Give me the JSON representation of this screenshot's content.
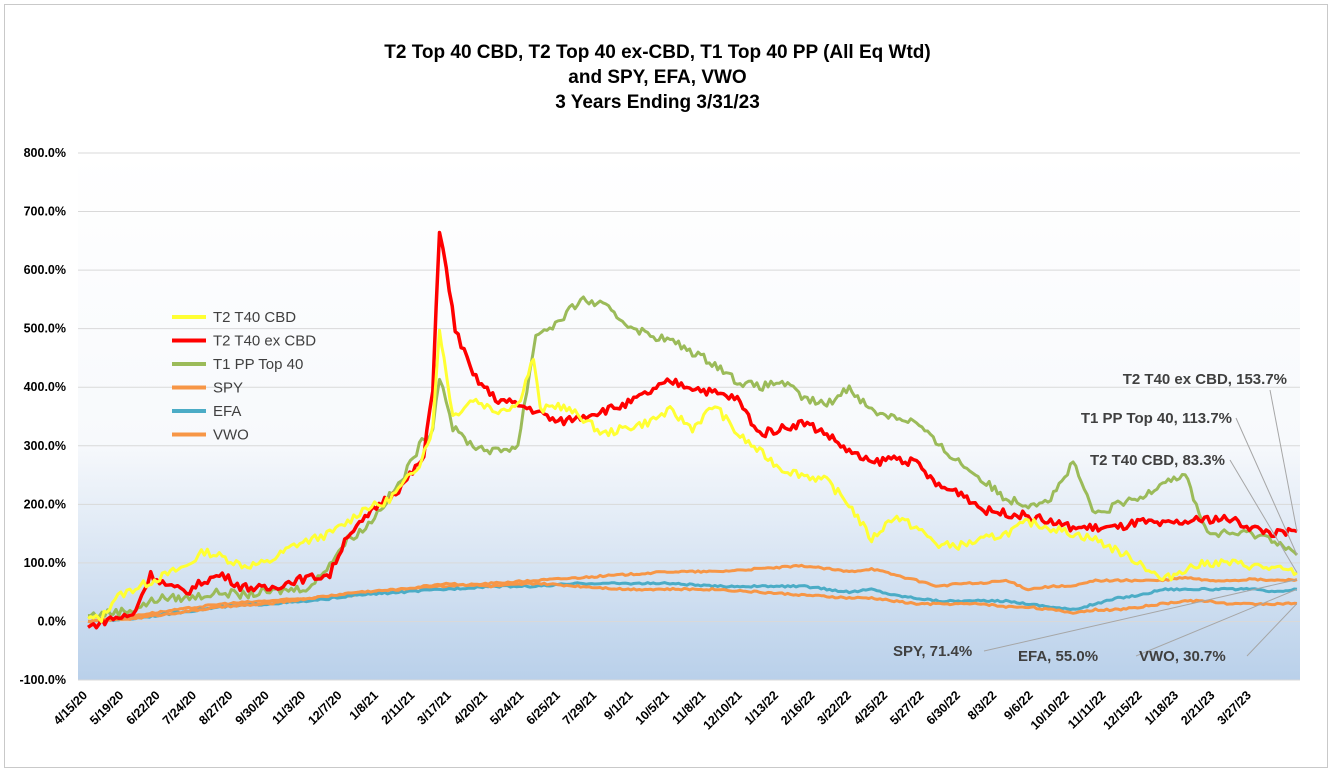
{
  "chart_data": {
    "type": "line",
    "title_lines": [
      "T2 Top 40 CBD, T2 Top 40 ex-CBD, T1 Top 40 PP (All Eq Wtd)",
      "and SPY, EFA, VWO",
      "3 Years Ending 3/31/23"
    ],
    "xlabel": "",
    "ylabel": "",
    "ylim": [
      -100,
      800
    ],
    "y_tick_labels": [
      "-100.0%",
      "0.0%",
      "100.0%",
      "200.0%",
      "300.0%",
      "400.0%",
      "500.0%",
      "600.0%",
      "700.0%",
      "800.0%"
    ],
    "y_tick_values": [
      -100,
      0,
      100,
      200,
      300,
      400,
      500,
      600,
      700,
      800
    ],
    "x_tick_labels": [
      "4/15/20",
      "5/19/20",
      "6/22/20",
      "7/24/20",
      "8/27/20",
      "9/30/20",
      "11/3/20",
      "12/7/20",
      "1/8/21",
      "2/11/21",
      "3/17/21",
      "4/20/21",
      "5/24/21",
      "6/25/21",
      "7/29/21",
      "9/1/21",
      "10/5/21",
      "11/8/21",
      "12/10/21",
      "1/13/22",
      "2/16/22",
      "3/22/22",
      "4/25/22",
      "5/27/22",
      "6/30/22",
      "8/3/22",
      "9/6/22",
      "10/10/22",
      "11/11/22",
      "12/15/22",
      "1/18/23",
      "2/21/23",
      "3/27/23"
    ],
    "x_range": [
      "3/31/20",
      "3/31/23"
    ],
    "grid": true,
    "legend_position": "left-middle",
    "series": [
      {
        "name": "T2 T40 CBD",
        "color": "#ffff33",
        "end_label": "T2 T40 CBD, 83.3%",
        "values": [
          [
            0,
            5
          ],
          [
            0.3,
            5
          ],
          [
            0.6,
            40
          ],
          [
            1,
            55
          ],
          [
            1.6,
            75
          ],
          [
            2.2,
            95
          ],
          [
            2.6,
            120
          ],
          [
            3,
            110
          ],
          [
            3.5,
            95
          ],
          [
            4,
            100
          ],
          [
            4.6,
            130
          ],
          [
            5,
            140
          ],
          [
            5.4,
            150
          ],
          [
            5.8,
            170
          ],
          [
            6.2,
            195
          ],
          [
            6.6,
            200
          ],
          [
            7,
            230
          ],
          [
            7.4,
            270
          ],
          [
            7.7,
            330
          ],
          [
            7.85,
            500
          ],
          [
            7.95,
            450
          ],
          [
            8.15,
            350
          ],
          [
            8.6,
            380
          ],
          [
            9.1,
            360
          ],
          [
            9.6,
            370
          ],
          [
            9.95,
            450
          ],
          [
            10.1,
            360
          ],
          [
            10.5,
            370
          ],
          [
            11,
            350
          ],
          [
            11.5,
            320
          ],
          [
            12,
            330
          ],
          [
            12.5,
            340
          ],
          [
            13,
            360
          ],
          [
            13.5,
            330
          ],
          [
            14,
            370
          ],
          [
            14.5,
            320
          ],
          [
            15,
            290
          ],
          [
            15.5,
            260
          ],
          [
            16,
            250
          ],
          [
            16.5,
            240
          ],
          [
            17,
            200
          ],
          [
            17.5,
            140
          ],
          [
            18,
            180
          ],
          [
            18.5,
            160
          ],
          [
            19,
            130
          ],
          [
            19.5,
            130
          ],
          [
            20,
            140
          ],
          [
            20.5,
            150
          ],
          [
            21,
            170
          ],
          [
            21.5,
            160
          ],
          [
            22,
            150
          ],
          [
            22.5,
            140
          ],
          [
            23,
            120
          ],
          [
            23.5,
            100
          ],
          [
            24,
            70
          ],
          [
            24.5,
            90
          ],
          [
            25,
            100
          ],
          [
            25.5,
            100
          ],
          [
            26,
            95
          ],
          [
            26.5,
            90
          ],
          [
            27,
            83.3
          ]
        ]
      },
      {
        "name": "T2 T40 ex CBD",
        "color": "#ff0000",
        "end_label": "T2 T40 ex CBD, 153.7%",
        "values": [
          [
            0,
            -10
          ],
          [
            0.5,
            5
          ],
          [
            1,
            10
          ],
          [
            1.4,
            80
          ],
          [
            1.8,
            60
          ],
          [
            2.2,
            50
          ],
          [
            2.6,
            70
          ],
          [
            3,
            80
          ],
          [
            3.4,
            60
          ],
          [
            4,
            55
          ],
          [
            4.6,
            70
          ],
          [
            5,
            75
          ],
          [
            5.4,
            80
          ],
          [
            5.8,
            150
          ],
          [
            6,
            160
          ],
          [
            6.5,
            200
          ],
          [
            7,
            230
          ],
          [
            7.5,
            280
          ],
          [
            7.7,
            400
          ],
          [
            7.85,
            670
          ],
          [
            8,
            600
          ],
          [
            8.2,
            500
          ],
          [
            8.6,
            420
          ],
          [
            9.1,
            380
          ],
          [
            9.6,
            370
          ],
          [
            10,
            360
          ],
          [
            10.5,
            340
          ],
          [
            11,
            350
          ],
          [
            11.5,
            360
          ],
          [
            12,
            370
          ],
          [
            12.5,
            390
          ],
          [
            13,
            410
          ],
          [
            13.5,
            400
          ],
          [
            14,
            390
          ],
          [
            14.5,
            380
          ],
          [
            15,
            320
          ],
          [
            15.5,
            330
          ],
          [
            16,
            340
          ],
          [
            16.5,
            320
          ],
          [
            17,
            290
          ],
          [
            17.5,
            270
          ],
          [
            18,
            280
          ],
          [
            18.5,
            270
          ],
          [
            19,
            230
          ],
          [
            19.5,
            220
          ],
          [
            20,
            190
          ],
          [
            20.5,
            185
          ],
          [
            21,
            180
          ],
          [
            21.5,
            170
          ],
          [
            22,
            160
          ],
          [
            22.5,
            160
          ],
          [
            23,
            160
          ],
          [
            23.5,
            170
          ],
          [
            24,
            165
          ],
          [
            24.5,
            170
          ],
          [
            25,
            175
          ],
          [
            25.5,
            175
          ],
          [
            26,
            160
          ],
          [
            26.5,
            150
          ],
          [
            27,
            153.7
          ]
        ]
      },
      {
        "name": "T1 PP Top 40",
        "color": "#9bbb59",
        "end_label": "T1 PP Top 40, 113.7%",
        "values": [
          [
            0,
            10
          ],
          [
            0.5,
            15
          ],
          [
            1,
            20
          ],
          [
            1.6,
            40
          ],
          [
            2.2,
            40
          ],
          [
            2.6,
            45
          ],
          [
            3,
            50
          ],
          [
            3.4,
            45
          ],
          [
            4,
            50
          ],
          [
            4.6,
            55
          ],
          [
            5,
            60
          ],
          [
            5.4,
            100
          ],
          [
            5.8,
            140
          ],
          [
            6.2,
            160
          ],
          [
            6.6,
            200
          ],
          [
            7,
            240
          ],
          [
            7.4,
            300
          ],
          [
            7.7,
            330
          ],
          [
            7.85,
            420
          ],
          [
            8,
            380
          ],
          [
            8.15,
            330
          ],
          [
            8.6,
            300
          ],
          [
            9.1,
            290
          ],
          [
            9.6,
            300
          ],
          [
            10,
            490
          ],
          [
            10.5,
            510
          ],
          [
            11,
            550
          ],
          [
            11.5,
            540
          ],
          [
            12,
            510
          ],
          [
            12.5,
            490
          ],
          [
            13,
            480
          ],
          [
            13.5,
            460
          ],
          [
            14,
            440
          ],
          [
            14.5,
            410
          ],
          [
            15,
            400
          ],
          [
            15.5,
            410
          ],
          [
            16,
            380
          ],
          [
            16.5,
            370
          ],
          [
            17,
            400
          ],
          [
            17.5,
            360
          ],
          [
            18,
            350
          ],
          [
            18.5,
            340
          ],
          [
            19,
            300
          ],
          [
            19.5,
            270
          ],
          [
            20,
            240
          ],
          [
            20.5,
            210
          ],
          [
            21,
            200
          ],
          [
            21.5,
            210
          ],
          [
            22,
            270
          ],
          [
            22.5,
            180
          ],
          [
            23,
            200
          ],
          [
            23.5,
            210
          ],
          [
            24,
            240
          ],
          [
            24.5,
            250
          ],
          [
            25,
            150
          ],
          [
            25.5,
            150
          ],
          [
            26,
            150
          ],
          [
            26.5,
            140
          ],
          [
            27,
            113.7
          ]
        ]
      },
      {
        "name": "SPY",
        "color": "#f79646",
        "end_label": "SPY, 71.4%",
        "values": [
          [
            0,
            0
          ],
          [
            1,
            10
          ],
          [
            2,
            20
          ],
          [
            3,
            30
          ],
          [
            4,
            35
          ],
          [
            5,
            40
          ],
          [
            6,
            45
          ],
          [
            7,
            55
          ],
          [
            8,
            60
          ],
          [
            9,
            65
          ],
          [
            10,
            70
          ],
          [
            11,
            75
          ],
          [
            12,
            80
          ],
          [
            13,
            85
          ],
          [
            14,
            85
          ],
          [
            15,
            90
          ],
          [
            16,
            95
          ],
          [
            17,
            85
          ],
          [
            17.5,
            90
          ],
          [
            18,
            80
          ],
          [
            18.5,
            70
          ],
          [
            19,
            60
          ],
          [
            19.5,
            65
          ],
          [
            20,
            65
          ],
          [
            20.5,
            70
          ],
          [
            21,
            55
          ],
          [
            21.5,
            60
          ],
          [
            22,
            60
          ],
          [
            22.5,
            70
          ],
          [
            23,
            70
          ],
          [
            23.5,
            70
          ],
          [
            24,
            70
          ],
          [
            24.5,
            75
          ],
          [
            25,
            70
          ],
          [
            25.5,
            70
          ],
          [
            26,
            72
          ],
          [
            26.5,
            70
          ],
          [
            27,
            71.4
          ]
        ]
      },
      {
        "name": "EFA",
        "color": "#4bacc6",
        "end_label": "EFA, 55.0%",
        "values": [
          [
            0,
            0
          ],
          [
            1,
            5
          ],
          [
            2,
            15
          ],
          [
            3,
            25
          ],
          [
            4,
            30
          ],
          [
            5,
            35
          ],
          [
            6,
            45
          ],
          [
            7,
            50
          ],
          [
            8,
            55
          ],
          [
            9,
            60
          ],
          [
            10,
            60
          ],
          [
            11,
            65
          ],
          [
            12,
            65
          ],
          [
            13,
            65
          ],
          [
            14,
            60
          ],
          [
            15,
            60
          ],
          [
            16,
            60
          ],
          [
            17,
            50
          ],
          [
            17.5,
            55
          ],
          [
            18,
            45
          ],
          [
            18.5,
            40
          ],
          [
            19,
            35
          ],
          [
            19.5,
            35
          ],
          [
            20,
            35
          ],
          [
            20.5,
            35
          ],
          [
            21,
            30
          ],
          [
            21.5,
            25
          ],
          [
            22,
            20
          ],
          [
            22.5,
            30
          ],
          [
            23,
            40
          ],
          [
            23.5,
            45
          ],
          [
            24,
            55
          ],
          [
            24.5,
            55
          ],
          [
            25,
            55
          ],
          [
            25.5,
            55
          ],
          [
            26,
            55
          ],
          [
            26.5,
            50
          ],
          [
            27,
            55
          ]
        ]
      },
      {
        "name": "VWO",
        "color": "#f79646",
        "end_label": "VWO, 30.7%",
        "values": [
          [
            0,
            0
          ],
          [
            1,
            5
          ],
          [
            2,
            15
          ],
          [
            3,
            25
          ],
          [
            4,
            30
          ],
          [
            5,
            40
          ],
          [
            6,
            50
          ],
          [
            7,
            55
          ],
          [
            8,
            65
          ],
          [
            9,
            60
          ],
          [
            10,
            65
          ],
          [
            11,
            60
          ],
          [
            12,
            55
          ],
          [
            13,
            55
          ],
          [
            14,
            55
          ],
          [
            15,
            50
          ],
          [
            16,
            45
          ],
          [
            17,
            40
          ],
          [
            17.5,
            40
          ],
          [
            18,
            35
          ],
          [
            18.5,
            30
          ],
          [
            19,
            30
          ],
          [
            19.5,
            30
          ],
          [
            20,
            30
          ],
          [
            20.5,
            25
          ],
          [
            21,
            25
          ],
          [
            21.5,
            20
          ],
          [
            22,
            15
          ],
          [
            22.5,
            20
          ],
          [
            23,
            20
          ],
          [
            23.5,
            25
          ],
          [
            24,
            30
          ],
          [
            24.5,
            35
          ],
          [
            25,
            35
          ],
          [
            25.5,
            30
          ],
          [
            26,
            30
          ],
          [
            26.5,
            30
          ],
          [
            27,
            30.7
          ]
        ]
      }
    ]
  }
}
